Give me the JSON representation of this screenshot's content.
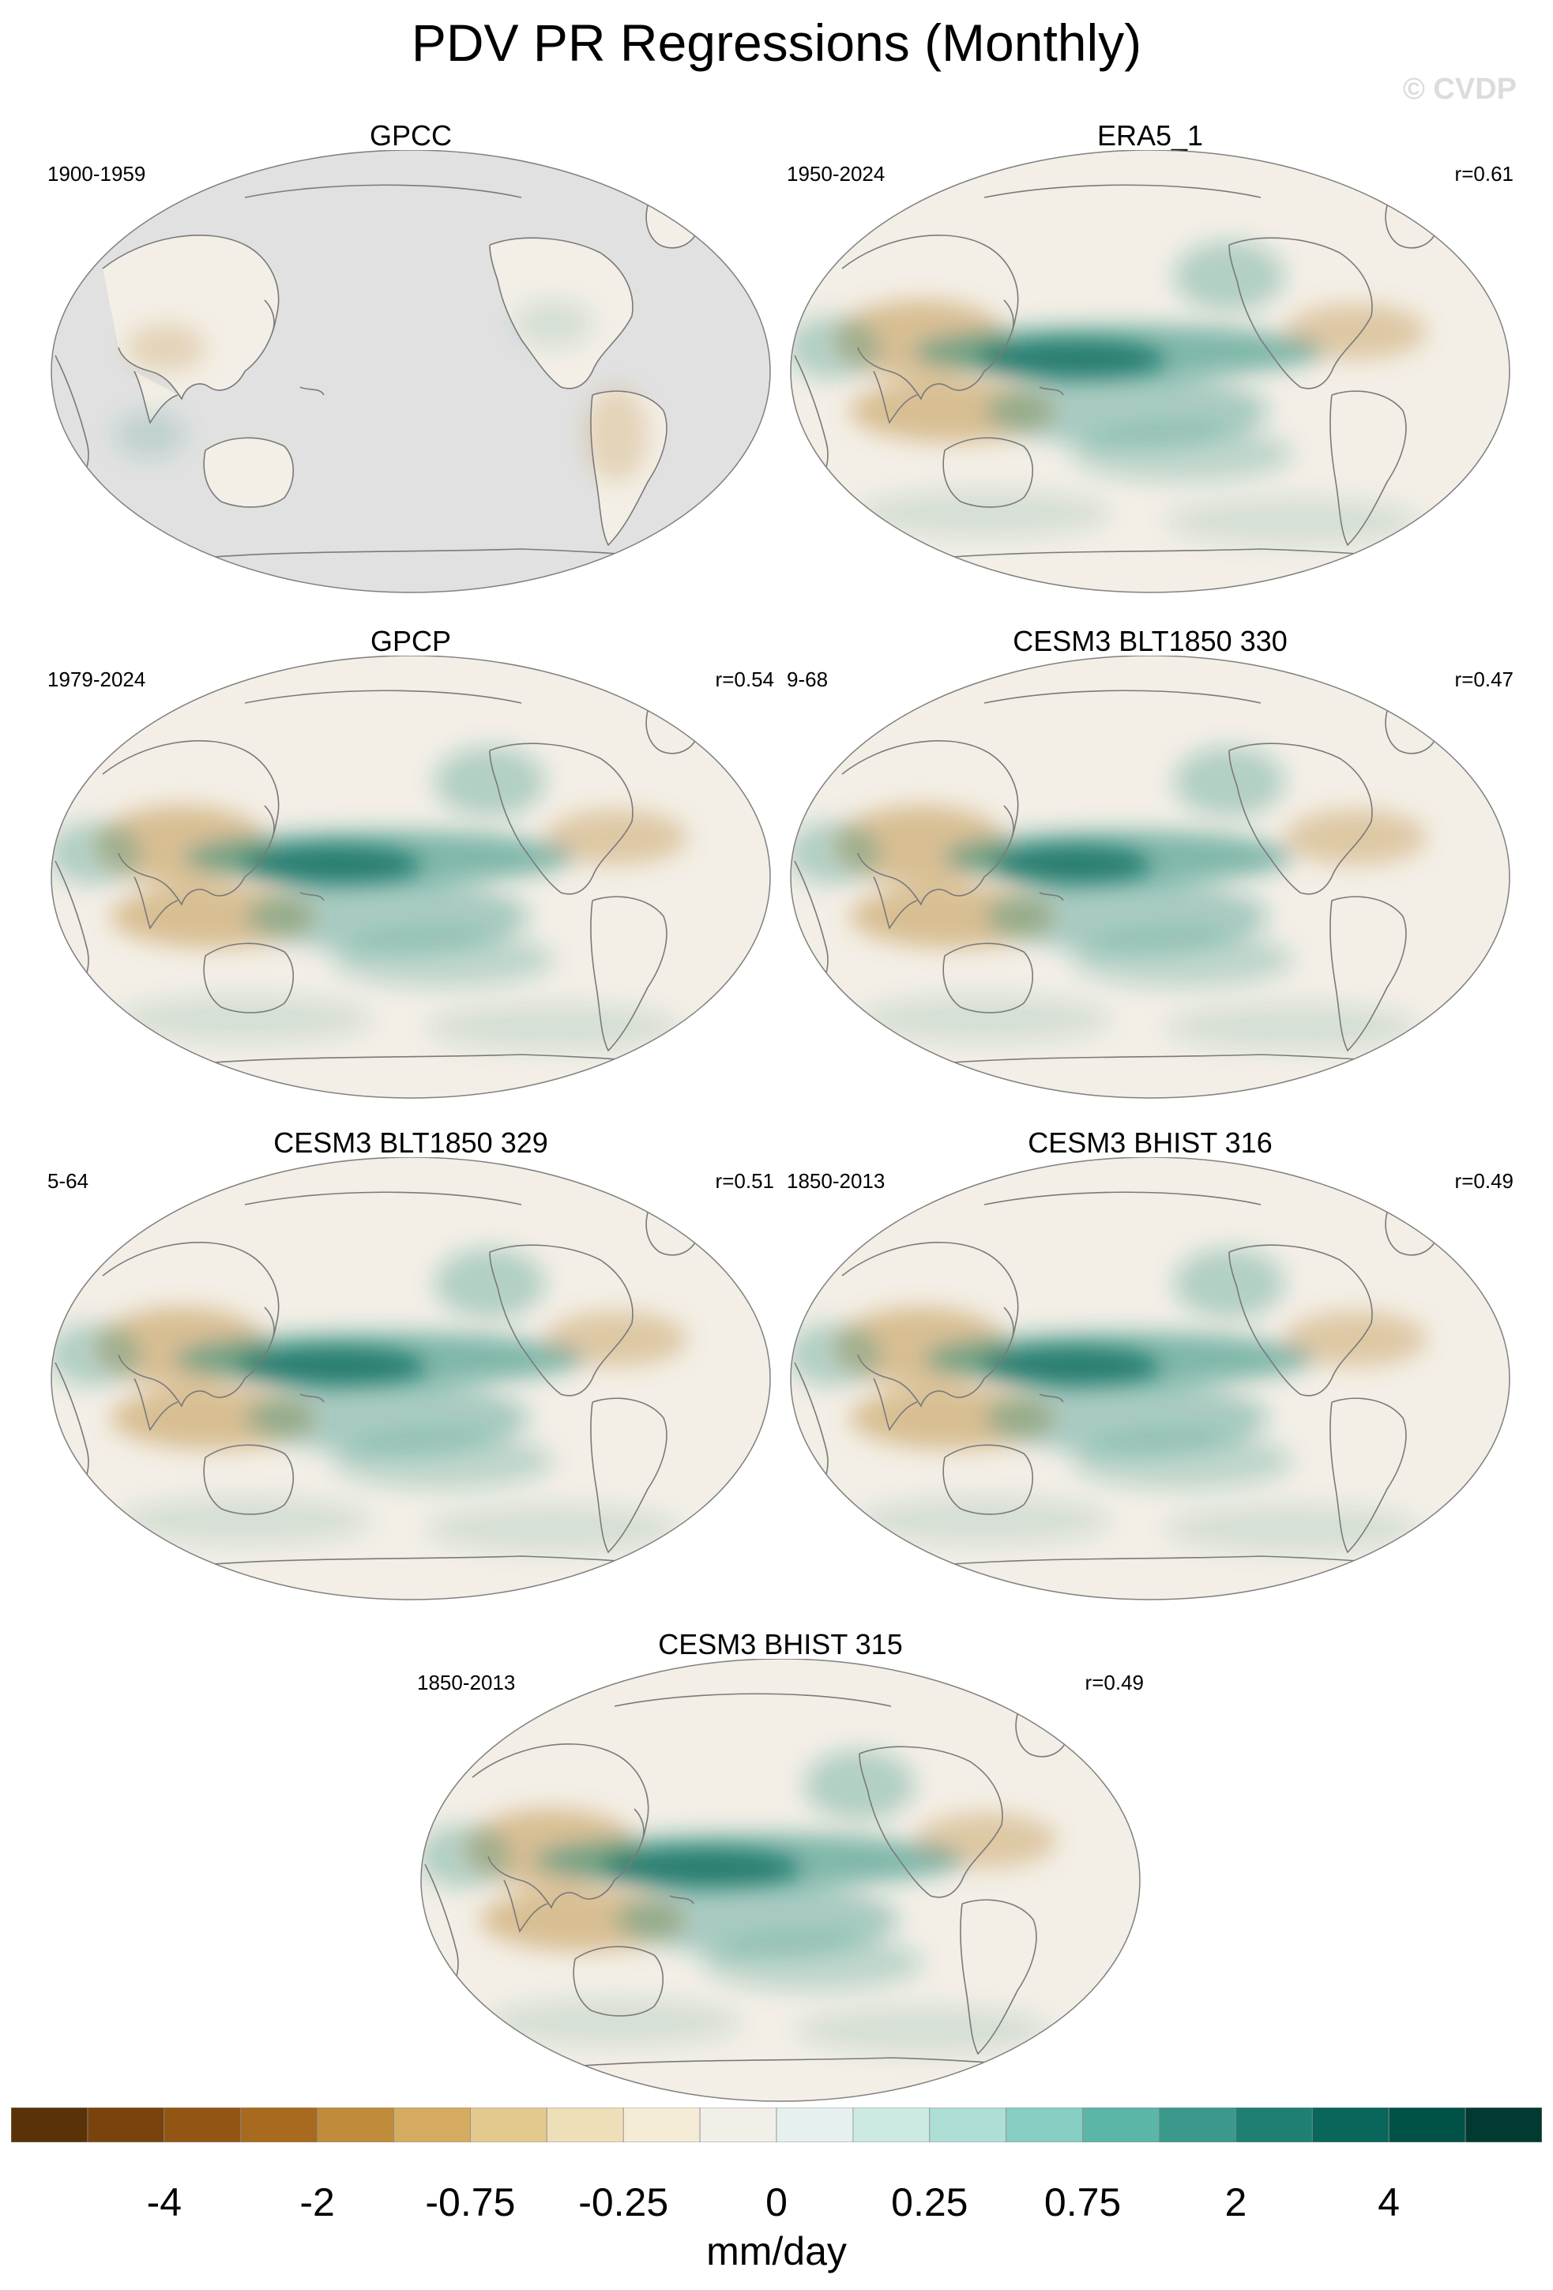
{
  "title": "PDV PR Regressions (Monthly)",
  "watermark": "© CVDP",
  "panels": [
    {
      "title": "GPCC",
      "period": "1900-1959",
      "corr": "",
      "kind": "obs_landonly"
    },
    {
      "title": "ERA5_1",
      "period": "1950-2024",
      "corr": "r=0.61",
      "kind": "full"
    },
    {
      "title": "GPCP",
      "period": "1979-2024",
      "corr": "r=0.54",
      "kind": "full"
    },
    {
      "title": "CESM3 BLT1850 330",
      "period": "9-68",
      "corr": "r=0.47",
      "kind": "full"
    },
    {
      "title": "CESM3 BLT1850 329",
      "period": "5-64",
      "corr": "r=0.51",
      "kind": "full"
    },
    {
      "title": "CESM3 BHIST 316",
      "period": "1850-2013",
      "corr": "r=0.49",
      "kind": "full"
    },
    {
      "title": "CESM3 BHIST 315",
      "period": "1850-2013",
      "corr": "r=0.49",
      "kind": "full"
    }
  ],
  "colorbar": {
    "unit": "mm/day",
    "tick_labels": [
      "-4",
      "-2",
      "-0.75",
      "-0.25",
      "0",
      "0.25",
      "0.75",
      "2",
      "4"
    ],
    "colors": [
      "#5a3208",
      "#7a430e",
      "#935514",
      "#a86a1e",
      "#c08c3c",
      "#d4ab60",
      "#e4c98f",
      "#efdfb9",
      "#f5ecd6",
      "#f2efe9",
      "#e6f1ef",
      "#cde9e4",
      "#addfd7",
      "#86cfc2",
      "#5cb6a7",
      "#3a998a",
      "#1f7f72",
      "#08665b",
      "#005246",
      "#003a30"
    ]
  },
  "map_colors": {
    "land_mask": "#e1e1e1",
    "ocean_base": "#f3eee6",
    "coastline": "#7a7a7a",
    "positive": "#1f8a7a",
    "negative": "#b8842e"
  }
}
